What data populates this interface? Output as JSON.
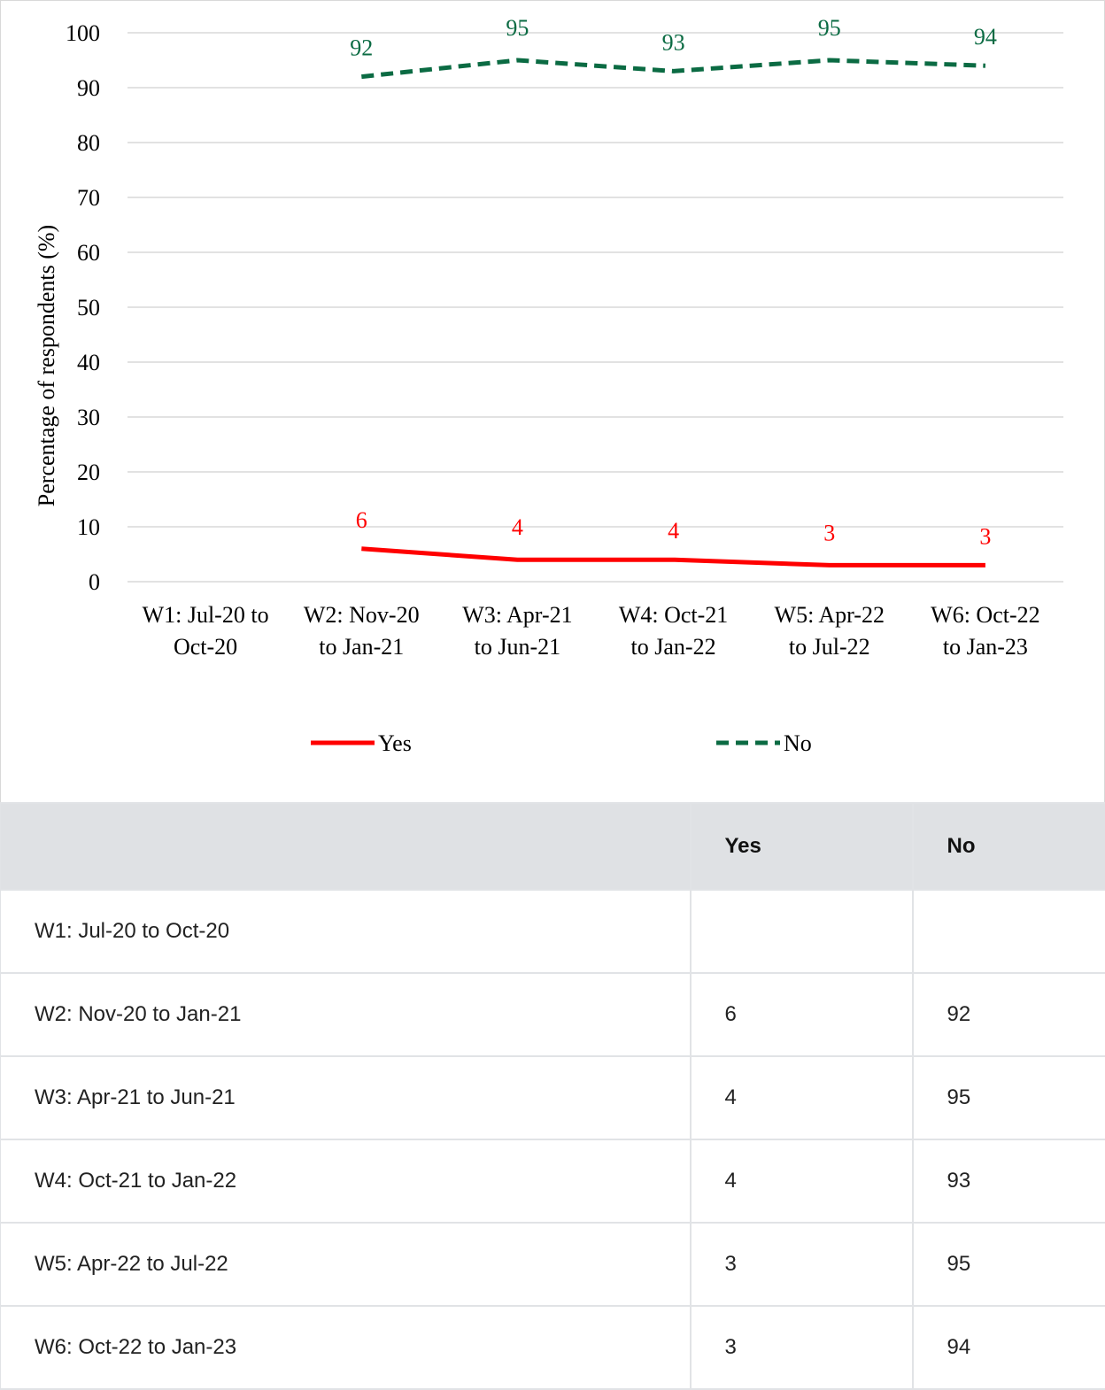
{
  "chart_data": {
    "type": "line",
    "title": "",
    "xlabel": "",
    "ylabel": "Percentage of respondents (%)",
    "ylim": [
      0,
      100
    ],
    "yticks": [
      0,
      10,
      20,
      30,
      40,
      50,
      60,
      70,
      80,
      90,
      100
    ],
    "grid": true,
    "legend_position": "bottom",
    "categories": [
      [
        "W1: Jul-20 to",
        "Oct-20"
      ],
      [
        "W2: Nov-20",
        "to Jan-21"
      ],
      [
        "W3: Apr-21",
        "to Jun-21"
      ],
      [
        "W4: Oct-21",
        "to Jan-22"
      ],
      [
        "W5: Apr-22",
        "to Jul-22"
      ],
      [
        "W6: Oct-22",
        "to Jan-23"
      ]
    ],
    "series": [
      {
        "name": "Yes",
        "values": [
          null,
          6,
          4,
          4,
          3,
          3
        ],
        "color": "#ff0000",
        "style": "solid"
      },
      {
        "name": "No",
        "values": [
          null,
          92,
          95,
          93,
          95,
          94
        ],
        "color": "#0b6b43",
        "style": "dashed"
      }
    ]
  },
  "table": {
    "headers": [
      "",
      "Yes",
      "No"
    ],
    "rows": [
      [
        "W1: Jul-20 to Oct-20",
        "",
        ""
      ],
      [
        "W2: Nov-20 to Jan-21",
        "6",
        "92"
      ],
      [
        "W3: Apr-21 to Jun-21",
        "4",
        "95"
      ],
      [
        "W4: Oct-21 to Jan-22",
        "4",
        "93"
      ],
      [
        "W5: Apr-22 to Jul-22",
        "3",
        "95"
      ],
      [
        "W6: Oct-22 to Jan-23",
        "3",
        "94"
      ]
    ]
  }
}
